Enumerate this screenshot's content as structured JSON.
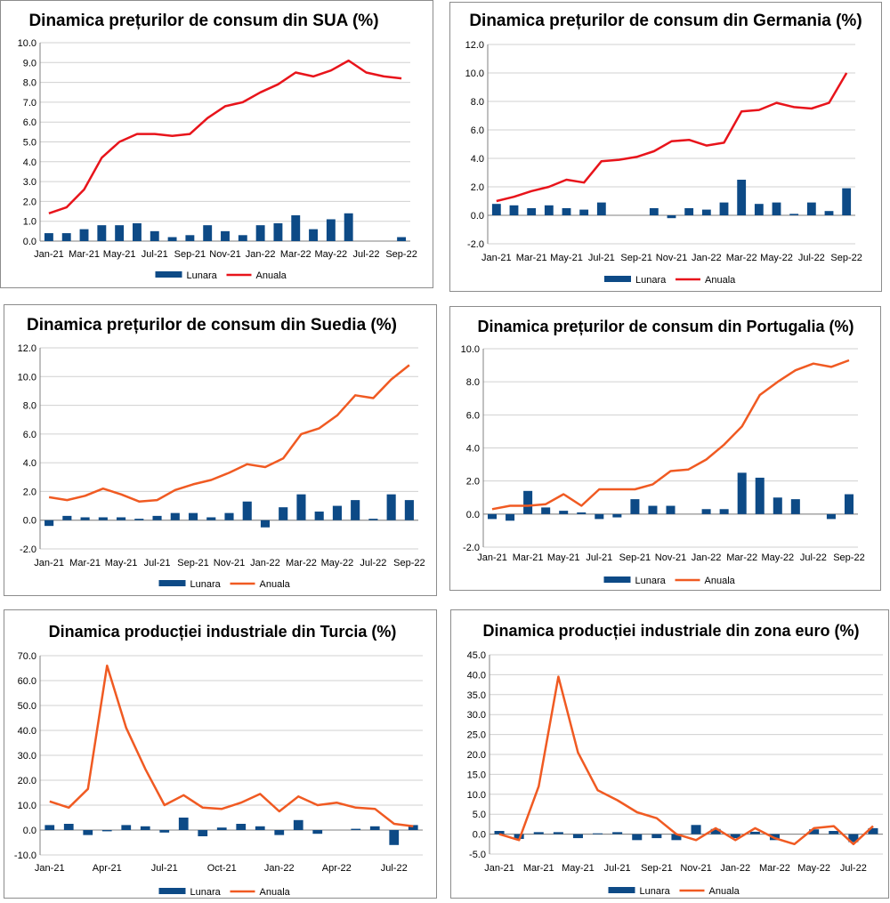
{
  "colors": {
    "bar": "#0d4a86",
    "line_red": "#e8141b",
    "line_orange": "#f05a22",
    "grid": "#d0d0d0",
    "axis": "#808080"
  },
  "chart_data": [
    {
      "id": "usa",
      "type": "bar+line",
      "title": "Dinamica prețurilor de consum din SUA (%)",
      "line_color_key": "line_red",
      "categories": [
        "Jan-21",
        "Feb-21",
        "Mar-21",
        "Apr-21",
        "May-21",
        "Jun-21",
        "Jul-21",
        "Aug-21",
        "Sep-21",
        "Oct-21",
        "Nov-21",
        "Dec-21",
        "Jan-22",
        "Feb-22",
        "Mar-22",
        "Apr-22",
        "May-22",
        "Jun-22",
        "Jul-22",
        "Aug-22",
        "Sep-22"
      ],
      "x_tick_labels": [
        "Jan-21",
        "Mar-21",
        "May-21",
        "Jul-21",
        "Sep-21",
        "Nov-21",
        "Jan-22",
        "Mar-22",
        "May-22",
        "Jul-22",
        "Sep-22"
      ],
      "y_ticks": [
        "0.0",
        "1.0",
        "2.0",
        "3.0",
        "4.0",
        "5.0",
        "6.0",
        "7.0",
        "8.0",
        "9.0",
        "10.0"
      ],
      "ylim": [
        0,
        10
      ],
      "series": [
        {
          "name": "Lunara",
          "kind": "bar",
          "values": [
            0.4,
            0.4,
            0.6,
            0.8,
            0.8,
            0.9,
            0.5,
            0.2,
            0.3,
            0.8,
            0.5,
            0.3,
            0.8,
            0.9,
            1.3,
            0.6,
            1.1,
            1.4,
            0.0,
            0.0,
            0.2
          ]
        },
        {
          "name": "Anuala",
          "kind": "line",
          "values": [
            1.4,
            1.7,
            2.6,
            4.2,
            5.0,
            5.4,
            5.4,
            5.3,
            5.4,
            6.2,
            6.8,
            7.0,
            7.5,
            7.9,
            8.5,
            8.3,
            8.6,
            9.1,
            8.5,
            8.3,
            8.2
          ]
        }
      ],
      "legend": [
        "Lunara",
        "Anuala"
      ]
    },
    {
      "id": "germany",
      "type": "bar+line",
      "title": "Dinamica prețurilor de consum din Germania (%)",
      "line_color_key": "line_red",
      "categories": [
        "Jan-21",
        "Feb-21",
        "Mar-21",
        "Apr-21",
        "May-21",
        "Jun-21",
        "Jul-21",
        "Aug-21",
        "Sep-21",
        "Oct-21",
        "Nov-21",
        "Dec-21",
        "Jan-22",
        "Feb-22",
        "Mar-22",
        "Apr-22",
        "May-22",
        "Jun-22",
        "Jul-22",
        "Aug-22",
        "Sep-22"
      ],
      "x_tick_labels": [
        "Jan-21",
        "Mar-21",
        "May-21",
        "Jul-21",
        "Sep-21",
        "Nov-21",
        "Jan-22",
        "Mar-22",
        "May-22",
        "Jul-22",
        "Sep-22"
      ],
      "y_ticks": [
        "-2.0",
        "0.0",
        "2.0",
        "4.0",
        "6.0",
        "8.0",
        "10.0",
        "12.0"
      ],
      "ylim": [
        -2,
        12
      ],
      "series": [
        {
          "name": "Lunara",
          "kind": "bar",
          "values": [
            0.8,
            0.7,
            0.5,
            0.7,
            0.5,
            0.4,
            0.9,
            0.0,
            0.0,
            0.5,
            -0.2,
            0.5,
            0.4,
            0.9,
            2.5,
            0.8,
            0.9,
            0.1,
            0.9,
            0.3,
            1.9
          ]
        },
        {
          "name": "Anuala",
          "kind": "line",
          "values": [
            1.0,
            1.3,
            1.7,
            2.0,
            2.5,
            2.3,
            3.8,
            3.9,
            4.1,
            4.5,
            5.2,
            5.3,
            4.9,
            5.1,
            7.3,
            7.4,
            7.9,
            7.6,
            7.5,
            7.9,
            10.0
          ]
        }
      ],
      "legend": [
        "Lunara",
        "Anuala"
      ]
    },
    {
      "id": "sweden",
      "type": "bar+line",
      "title": "Dinamica prețurilor de consum din Suedia (%)",
      "line_color_key": "line_orange",
      "categories": [
        "Jan-21",
        "Feb-21",
        "Mar-21",
        "Apr-21",
        "May-21",
        "Jun-21",
        "Jul-21",
        "Aug-21",
        "Sep-21",
        "Oct-21",
        "Nov-21",
        "Dec-21",
        "Jan-22",
        "Feb-22",
        "Mar-22",
        "Apr-22",
        "May-22",
        "Jun-22",
        "Jul-22",
        "Aug-22",
        "Sep-22"
      ],
      "x_tick_labels": [
        "Jan-21",
        "Mar-21",
        "May-21",
        "Jul-21",
        "Sep-21",
        "Nov-21",
        "Jan-22",
        "Mar-22",
        "May-22",
        "Jul-22",
        "Sep-22"
      ],
      "y_ticks": [
        "-2.0",
        "0.0",
        "2.0",
        "4.0",
        "6.0",
        "8.0",
        "10.0",
        "12.0"
      ],
      "ylim": [
        -2,
        12
      ],
      "series": [
        {
          "name": "Lunara",
          "kind": "bar",
          "values": [
            -0.4,
            0.3,
            0.2,
            0.2,
            0.2,
            0.1,
            0.3,
            0.5,
            0.5,
            0.2,
            0.5,
            1.3,
            -0.5,
            0.9,
            1.8,
            0.6,
            1.0,
            1.4,
            0.1,
            1.8,
            1.4
          ]
        },
        {
          "name": "Anuala",
          "kind": "line",
          "values": [
            1.6,
            1.4,
            1.7,
            2.2,
            1.8,
            1.3,
            1.4,
            2.1,
            2.5,
            2.8,
            3.3,
            3.9,
            3.7,
            4.3,
            6.0,
            6.4,
            7.3,
            8.7,
            8.5,
            9.8,
            10.8
          ]
        }
      ],
      "legend": [
        "Lunara",
        "Anuala"
      ]
    },
    {
      "id": "portugal",
      "type": "bar+line",
      "title": "Dinamica prețurilor de consum din Portugalia (%)",
      "line_color_key": "line_orange",
      "categories": [
        "Jan-21",
        "Feb-21",
        "Mar-21",
        "Apr-21",
        "May-21",
        "Jun-21",
        "Jul-21",
        "Aug-21",
        "Sep-21",
        "Oct-21",
        "Nov-21",
        "Dec-21",
        "Jan-22",
        "Feb-22",
        "Mar-22",
        "Apr-22",
        "May-22",
        "Jun-22",
        "Jul-22",
        "Aug-22",
        "Sep-22"
      ],
      "x_tick_labels": [
        "Jan-21",
        "Mar-21",
        "May-21",
        "Jul-21",
        "Sep-21",
        "Nov-21",
        "Jan-22",
        "Mar-22",
        "May-22",
        "Jul-22",
        "Sep-22"
      ],
      "y_ticks": [
        "-2.0",
        "0.0",
        "2.0",
        "4.0",
        "6.0",
        "8.0",
        "10.0"
      ],
      "ylim": [
        -2,
        10
      ],
      "series": [
        {
          "name": "Lunara",
          "kind": "bar",
          "values": [
            -0.3,
            -0.4,
            1.4,
            0.4,
            0.2,
            0.1,
            -0.3,
            -0.2,
            0.9,
            0.5,
            0.5,
            0.0,
            0.3,
            0.3,
            2.5,
            2.2,
            1.0,
            0.9,
            0.0,
            -0.3,
            1.2
          ]
        },
        {
          "name": "Anuala",
          "kind": "line",
          "values": [
            0.3,
            0.5,
            0.5,
            0.6,
            1.2,
            0.5,
            1.5,
            1.5,
            1.5,
            1.8,
            2.6,
            2.7,
            3.3,
            4.2,
            5.3,
            7.2,
            8.0,
            8.7,
            9.1,
            8.9,
            9.3
          ]
        }
      ],
      "legend": [
        "Lunara",
        "Anuala"
      ]
    },
    {
      "id": "turkey",
      "type": "bar+line",
      "title": "Dinamica producției industriale din Turcia (%)",
      "line_color_key": "line_orange",
      "categories": [
        "Jan-21",
        "Feb-21",
        "Mar-21",
        "Apr-21",
        "May-21",
        "Jun-21",
        "Jul-21",
        "Aug-21",
        "Sep-21",
        "Oct-21",
        "Nov-21",
        "Dec-21",
        "Jan-22",
        "Feb-22",
        "Mar-22",
        "Apr-22",
        "May-22",
        "Jun-22",
        "Jul-22",
        "Aug-22"
      ],
      "x_tick_labels": [
        "Jan-21",
        "Apr-21",
        "Jul-21",
        "Oct-21",
        "Jan-22",
        "Apr-22",
        "Jul-22"
      ],
      "y_ticks": [
        "-10.0",
        "0.0",
        "10.0",
        "20.0",
        "30.0",
        "40.0",
        "50.0",
        "60.0",
        "70.0"
      ],
      "ylim": [
        -10,
        70
      ],
      "series": [
        {
          "name": "Lunara",
          "kind": "bar",
          "values": [
            2.0,
            2.5,
            -2.0,
            -0.5,
            2.0,
            1.5,
            -1.0,
            5.0,
            -2.5,
            1.0,
            2.5,
            1.5,
            -2.0,
            4.0,
            -1.5,
            0.0,
            0.5,
            1.5,
            -6.0,
            2.0
          ]
        },
        {
          "name": "Anuala",
          "kind": "line",
          "values": [
            11.5,
            9.0,
            16.5,
            66.0,
            41.0,
            24.5,
            10.0,
            14.0,
            9.0,
            8.5,
            11.0,
            14.5,
            7.5,
            13.5,
            10.0,
            11.0,
            9.0,
            8.5,
            2.5,
            1.5
          ]
        }
      ],
      "legend": [
        "Lunara",
        "Anuala"
      ]
    },
    {
      "id": "eurozone",
      "type": "bar+line",
      "title": "Dinamica producției industriale din zona euro (%)",
      "line_color_key": "line_orange",
      "categories": [
        "Jan-21",
        "Feb-21",
        "Mar-21",
        "Apr-21",
        "May-21",
        "Jun-21",
        "Jul-21",
        "Aug-21",
        "Sep-21",
        "Oct-21",
        "Nov-21",
        "Dec-21",
        "Jan-22",
        "Feb-22",
        "Mar-22",
        "Apr-22",
        "May-22",
        "Jun-22",
        "Jul-22",
        "Aug-22"
      ],
      "x_tick_labels": [
        "Jan-21",
        "Mar-21",
        "May-21",
        "Jul-21",
        "Sep-21",
        "Nov-21",
        "Jan-22",
        "Mar-22",
        "May-22",
        "Jul-22"
      ],
      "y_ticks": [
        "-5.0",
        "0.0",
        "5.0",
        "10.0",
        "15.0",
        "20.0",
        "25.0",
        "30.0",
        "35.0",
        "40.0",
        "45.0"
      ],
      "ylim": [
        -5,
        45
      ],
      "series": [
        {
          "name": "Lunara",
          "kind": "bar",
          "values": [
            0.8,
            -1.2,
            0.5,
            0.5,
            -1.0,
            0.2,
            0.5,
            -1.5,
            -1.0,
            -1.5,
            2.3,
            1.3,
            -1.0,
            0.6,
            -1.5,
            0.0,
            1.2,
            0.8,
            -2.0,
            1.5
          ]
        },
        {
          "name": "Anuala",
          "kind": "line",
          "values": [
            0.0,
            -1.5,
            12.0,
            39.5,
            20.5,
            11.0,
            8.5,
            5.5,
            4.0,
            0.0,
            -1.5,
            1.5,
            -1.5,
            1.5,
            -1.0,
            -2.5,
            1.5,
            2.0,
            -2.5,
            2.0
          ]
        }
      ],
      "legend": [
        "Lunara",
        "Anuala"
      ]
    }
  ]
}
